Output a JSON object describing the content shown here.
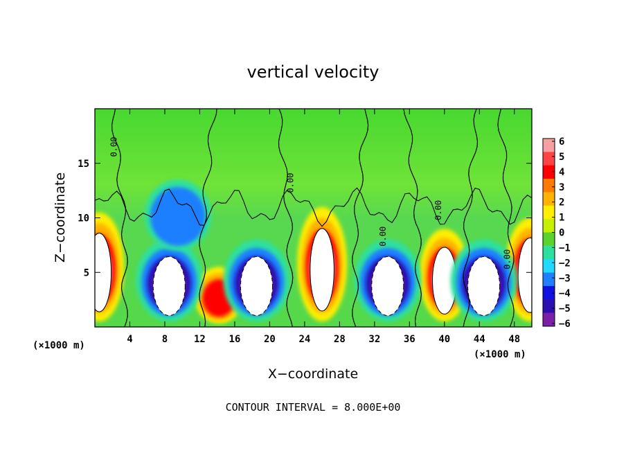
{
  "chart_data": {
    "type": "heatmap",
    "title": "vertical velocity",
    "xlabel": "X−coordinate",
    "ylabel": "Z−coordinate",
    "x_unit_left": "(×1000 m)",
    "x_unit_right": "(×1000 m)",
    "annotation": "CONTOUR INTERVAL = 8.000E+00",
    "xlim": [
      0,
      50
    ],
    "ylim": [
      0,
      20
    ],
    "x_ticks": [
      "4",
      "8",
      "12",
      "16",
      "20",
      "24",
      "28",
      "32",
      "36",
      "40",
      "44",
      "48"
    ],
    "y_ticks": [
      "5",
      "10",
      "15"
    ],
    "colorbar": {
      "ticks": [
        "6",
        "5",
        "4",
        "3",
        "2",
        "1",
        "0",
        "−1",
        "−2",
        "−3",
        "−4",
        "−5",
        "−6"
      ],
      "range": [
        -6,
        6
      ],
      "colors": [
        "#f7a0a0",
        "#ff4444",
        "#ff0000",
        "#ff7a00",
        "#ffb300",
        "#ffee00",
        "#c6f000",
        "#5ad42c",
        "#2ee0a0",
        "#21d8ff",
        "#1f7fff",
        "#1010e0",
        "#2a10b0",
        "#7c20a8"
      ]
    },
    "contour_labels": [
      "0.00",
      "0.00",
      "0.00",
      "0.00",
      "0.00"
    ],
    "updrafts": [
      {
        "x": 0.5,
        "z_bottom": 0.5,
        "z_top": 10.5,
        "peak": 9
      },
      {
        "x": 26.0,
        "z_bottom": 0.5,
        "z_top": 11.0,
        "peak": 9
      },
      {
        "x": 40.0,
        "z_bottom": 0.5,
        "z_top": 9.0,
        "peak": 9
      },
      {
        "x": 49.8,
        "z_bottom": 0.5,
        "z_top": 10.0,
        "peak": 9
      },
      {
        "x": 14.2,
        "z_bottom": 0.3,
        "z_top": 5.5,
        "peak": 4
      }
    ],
    "downdrafts": [
      {
        "x": 8.5,
        "z_bottom": 0.5,
        "z_top": 8.0,
        "peak": -9
      },
      {
        "x": 18.5,
        "z_bottom": 0.5,
        "z_top": 8.0,
        "peak": -9
      },
      {
        "x": 33.5,
        "z_bottom": 0.5,
        "z_top": 8.0,
        "peak": -9
      },
      {
        "x": 44.5,
        "z_bottom": 0.5,
        "z_top": 8.0,
        "peak": -9
      },
      {
        "x": 9.5,
        "z_bottom": 7.0,
        "z_top": 13.5,
        "peak": -4
      }
    ]
  }
}
